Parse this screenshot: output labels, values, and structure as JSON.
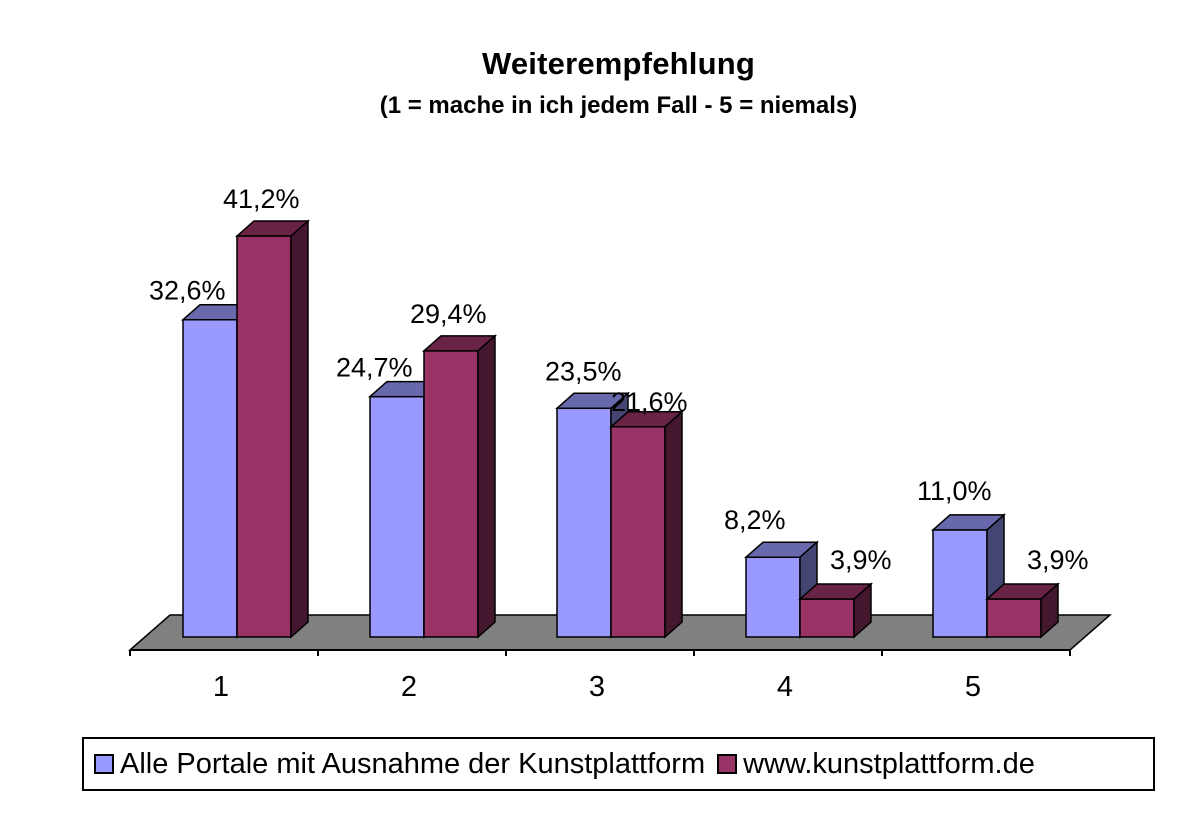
{
  "chart_data": {
    "type": "bar",
    "title": "Weiterempfehlung",
    "subtitle": "(1 = mache in ich jedem Fall - 5 = niemals)",
    "xlabel": "",
    "ylabel": "",
    "categories": [
      "1",
      "2",
      "3",
      "4",
      "5"
    ],
    "series": [
      {
        "name": "Alle Portale mit Ausnahme der Kunstplattform",
        "values": [
          32.6,
          24.7,
          23.5,
          8.2,
          11.0
        ],
        "labels": [
          "32,6%",
          "24,7%",
          "23,5%",
          "8,2%",
          "11,0%"
        ],
        "color": "#9999ff"
      },
      {
        "name": "www.kunstplattform.de",
        "values": [
          41.2,
          29.4,
          21.6,
          3.9,
          3.9
        ],
        "labels": [
          "41,2%",
          "29,4%",
          "21,6%",
          "3,9%",
          "3,9%"
        ],
        "color": "#993366"
      }
    ],
    "ylim": [
      0,
      45
    ],
    "grid": false,
    "legend_position": "bottom",
    "style": "3d-clustered-column",
    "floor_color": "#808080"
  }
}
